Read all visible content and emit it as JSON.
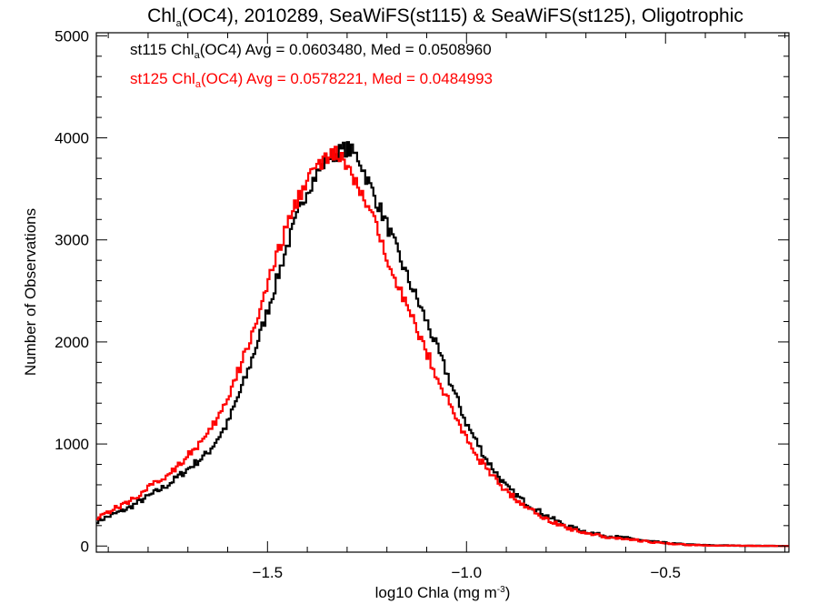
{
  "chart_data": {
    "type": "line",
    "style": "step histogram",
    "title": {
      "pre": "Chl",
      "sub": "a",
      "post": "(OC4), 2010289, SeaWiFS(st115) & SeaWiFS(st125), Oligotrophic"
    },
    "xlabel": {
      "pre": "log10 Chla (mg m",
      "sup": "-3",
      "post": ")"
    },
    "ylabel": "Number of Observations",
    "xlim": [
      -1.93,
      -0.19
    ],
    "ylim": [
      -60,
      5030
    ],
    "xticks": [
      {
        "value": -1.5,
        "label": "−1.5"
      },
      {
        "value": -1.0,
        "label": "−1.0"
      },
      {
        "value": -0.5,
        "label": "−0.5"
      }
    ],
    "yticks": [
      {
        "value": 0,
        "label": "0"
      },
      {
        "value": 1000,
        "label": "1000"
      },
      {
        "value": 2000,
        "label": "2000"
      },
      {
        "value": 3000,
        "label": "3000"
      },
      {
        "value": 4000,
        "label": "4000"
      },
      {
        "value": 5000,
        "label": "5000"
      }
    ],
    "grid": false,
    "legend": [
      {
        "pre": "st115 Chl",
        "sub": "a",
        "post": "(OC4) Avg = 0.0603480, Med = 0.0508960",
        "color": "#000000"
      },
      {
        "pre": "st125 Chl",
        "sub": "a",
        "post": "(OC4) Avg = 0.0578221, Med = 0.0484993",
        "color": "#ff0000"
      }
    ],
    "legend_position": "top-left",
    "series": [
      {
        "color": "#000000",
        "x": [
          -1.93,
          -1.85,
          -1.75,
          -1.65,
          -1.6,
          -1.55,
          -1.5,
          -1.45,
          -1.4,
          -1.35,
          -1.3,
          -1.27,
          -1.25,
          -1.2,
          -1.15,
          -1.1,
          -1.05,
          -1.0,
          -0.95,
          -0.9,
          -0.85,
          -0.8,
          -0.75,
          -0.7,
          -0.65,
          -0.6,
          -0.55,
          -0.5,
          -0.45,
          -0.4,
          -0.3,
          -0.19
        ],
        "values": [
          240,
          370,
          600,
          910,
          1200,
          1700,
          2300,
          2950,
          3500,
          3800,
          3900,
          3800,
          3600,
          3150,
          2650,
          2200,
          1700,
          1200,
          850,
          580,
          420,
          300,
          200,
          140,
          100,
          80,
          50,
          30,
          15,
          8,
          3,
          0
        ]
      },
      {
        "color": "#ff0000",
        "x": [
          -1.93,
          -1.85,
          -1.75,
          -1.65,
          -1.6,
          -1.55,
          -1.5,
          -1.45,
          -1.4,
          -1.35,
          -1.32,
          -1.3,
          -1.25,
          -1.2,
          -1.15,
          -1.1,
          -1.05,
          -1.0,
          -0.95,
          -0.9,
          -0.85,
          -0.8,
          -0.75,
          -0.7,
          -0.65,
          -0.6,
          -0.55,
          -0.5,
          -0.45,
          -0.4,
          -0.3,
          -0.19
        ],
        "values": [
          280,
          430,
          700,
          1080,
          1430,
          1950,
          2550,
          3150,
          3620,
          3800,
          3850,
          3700,
          3350,
          2850,
          2350,
          1900,
          1450,
          1050,
          750,
          540,
          380,
          270,
          180,
          130,
          90,
          70,
          45,
          25,
          12,
          6,
          2,
          0
        ]
      }
    ]
  }
}
